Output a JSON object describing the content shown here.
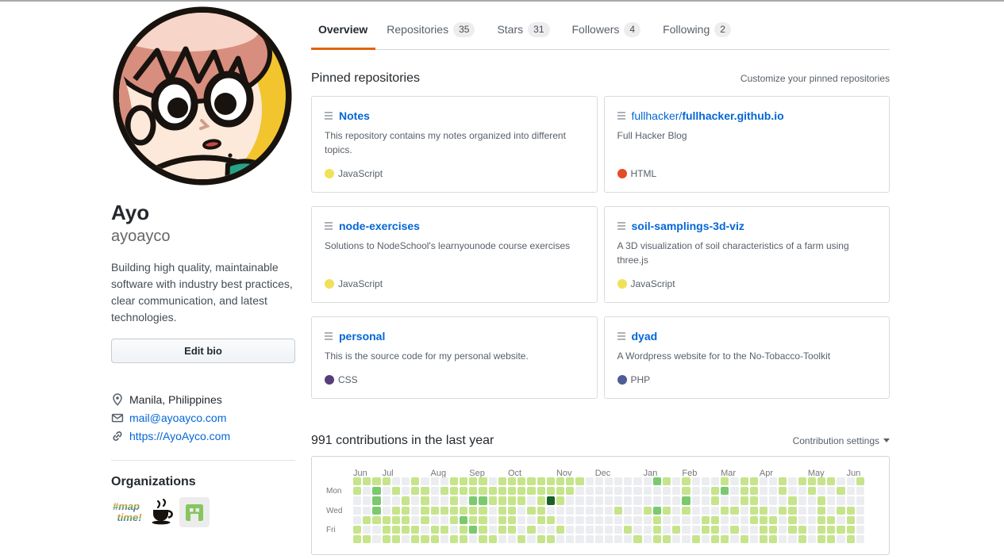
{
  "profile": {
    "name": "Ayo",
    "username": "ayoayco",
    "bio": "Building high quality, maintainable software with industry best practices, clear communication, and latest technologies.",
    "edit_bio_label": "Edit bio",
    "location": "Manila, Philippines",
    "email": "mail@ayoayco.com",
    "website": "https://AyoAyco.com",
    "organizations_title": "Organizations",
    "organizations": [
      {
        "name": "maptime",
        "text_line1": "#map",
        "text_line2": "time!"
      },
      {
        "name": "coffee-cup-org"
      },
      {
        "name": "green-avatar-org"
      }
    ]
  },
  "tabs": [
    {
      "label": "Overview",
      "count": "",
      "active": true
    },
    {
      "label": "Repositories",
      "count": "35",
      "active": false
    },
    {
      "label": "Stars",
      "count": "31",
      "active": false
    },
    {
      "label": "Followers",
      "count": "4",
      "active": false
    },
    {
      "label": "Following",
      "count": "2",
      "active": false
    }
  ],
  "pinned": {
    "title": "Pinned repositories",
    "customize_label": "Customize your pinned repositories",
    "repos": [
      {
        "prefix": "",
        "name": "Notes",
        "description": "This repository contains my notes organized into different topics.",
        "language": "JavaScript",
        "language_color": "#f1e05a"
      },
      {
        "prefix": "fullhacker/",
        "name": "fullhacker.github.io",
        "description": "Full Hacker Blog",
        "language": "HTML",
        "language_color": "#e34c26"
      },
      {
        "prefix": "",
        "name": "node-exercises",
        "description": "Solutions to NodeSchool's learnyounode course exercises",
        "language": "JavaScript",
        "language_color": "#f1e05a"
      },
      {
        "prefix": "",
        "name": "soil-samplings-3d-viz",
        "description": "A 3D visualization of soil characteristics of a farm using three.js",
        "language": "JavaScript",
        "language_color": "#f1e05a"
      },
      {
        "prefix": "",
        "name": "personal",
        "description": "This is the source code for my personal website.",
        "language": "CSS",
        "language_color": "#563d7c"
      },
      {
        "prefix": "",
        "name": "dyad",
        "description": "A Wordpress website for to the No-Tobacco-Toolkit",
        "language": "PHP",
        "language_color": "#4F5D95"
      }
    ]
  },
  "contributions": {
    "title": "991 contributions in the last year",
    "settings_label": "Contribution settings",
    "chart_data": {
      "type": "heatmap",
      "months": [
        "Jun",
        "Jul",
        "Aug",
        "Sep",
        "Oct",
        "Nov",
        "Dec",
        "Jan",
        "Feb",
        "Mar",
        "Apr",
        "May",
        "Jun"
      ],
      "month_week_index": [
        0,
        3,
        8,
        12,
        16,
        21,
        25,
        30,
        34,
        38,
        42,
        47,
        51
      ],
      "day_labels": [
        "",
        "Mon",
        "",
        "Wed",
        "",
        "Fri",
        ""
      ],
      "palette": [
        "#ebedf0",
        "#c6e48b",
        "#7bc96f",
        "#239a3b",
        "#196127"
      ],
      "weeks_levels_by_day": [
        "11110010001111011111111100000002101000101100101111001",
        "10201011011111111111111000000000001001201100100100100",
        "00200101001022111101410000000000002001001100010010000",
        "00201101111111011011000000010012101000110110110010110",
        "01111101001211011001100000000001000011000111010011010",
        "10011110110121011010010000001001010011010011011011110",
        "11011011101101100101100000000101100101101011001011010"
      ]
    }
  }
}
